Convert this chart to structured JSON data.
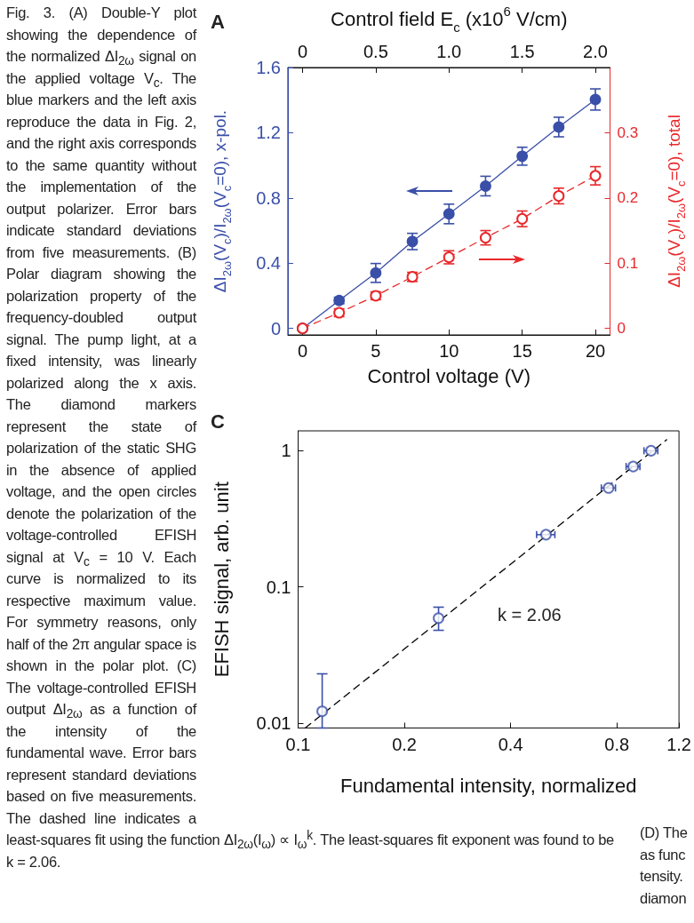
{
  "chart_data": [
    {
      "type": "line",
      "title": "A",
      "xlabel": "Control voltage (V)",
      "x2label": "Control field E$_{c}$ (x10$^{6}$ V/cm)",
      "ylabel": "ΔI$_{2ω}$(V$_{c}$)/I$_{2ω}$(V$_{c}$=0), x-pol.",
      "y2label": "ΔI$_{2ω}$(V$_{c}$)/I$_{2ω}$(V$_{c}$=0), total",
      "x": [
        0,
        2.5,
        5,
        7.5,
        10,
        12.5,
        15,
        17.5,
        20
      ],
      "xlim": [
        -1,
        21
      ],
      "xticks": [
        0,
        5,
        10,
        15,
        20
      ],
      "x2lim": [
        -0.1,
        2.1
      ],
      "x2ticks": [
        0,
        0.5,
        {
          "value": 1,
          "label": "1.0"
        },
        1.5,
        {
          "value": 2,
          "label": "2.0"
        }
      ],
      "ylim": [
        -0.04,
        1.6
      ],
      "yticks": [
        0,
        0.4,
        0.8,
        1.2,
        1.6
      ],
      "y2lim": [
        -0.01,
        0.4
      ],
      "y2ticks": [
        0,
        0.1,
        0.2,
        0.3
      ],
      "series": [
        {
          "color": "#3a4fa8",
          "marker": "circle",
          "line_style": "solid",
          "values": [
            0,
            0.171,
            0.34,
            0.533,
            0.702,
            0.873,
            1.056,
            1.235,
            1.404
          ],
          "errors": [
            null,
            0.02,
            0.058,
            0.05,
            0.06,
            0.06,
            0.055,
            0.06,
            0.065
          ]
        },
        {
          "color": "#e8282b",
          "marker": "open_circle",
          "line_style": "dashed",
          "axis": "y2",
          "values": [
            0,
            0.024,
            0.05,
            0.079,
            0.109,
            0.139,
            0.168,
            0.203,
            0.234
          ],
          "errors": [
            null,
            0.006,
            0.006,
            0.007,
            0.01,
            0.011,
            0.012,
            0.012,
            0.014
          ]
        }
      ],
      "annotations": [
        "Fig. 3. (A) Double-Y plot showing the dependence of the normalized ΔI$_{2ω}$ signal on the applied voltage V$_{c}$. The blue markers and the left axis reproduce the data in Fig. 2, and the right axis corresponds to the same quantity without the implementation of the output polarizer. Error bars indicate standard deviations from five measurements. (B) Polar diagram showing the polarization property of the frequency-doubled output signal. The pump light, at a fixed intensity, was linearly polarized along the x axis. The diamond markers represent the state of polarization of the static SHG in the absence of applied voltage, and the open circles denote the polarization of the voltage-controlled EFISH signal at V$_{c}$ = 10 V. Each curve is normalized to its respective maximum value. For symmetry reasons, only half of the 2π angular space is shown in the polar plot. (C) The voltage-controlled EFISH output ΔI$_{2ω}$ as a function of the intensity of the fundamental wave. Error bars represent standard deviations based on five measurements. The dashed line indicates a least-squares fit using the function ΔI$_{2ω}$(I$_{ω}$) ∝ I$_{ω}$$^{k}$. The least-squares fit exponent was found to be k = 2.06."
      ]
    },
    {
      "type": "scatter",
      "title": "C",
      "log": "xy",
      "xlabel": "Fundamental intensity, normalized",
      "ylabel": "EFISH signal, arb. unit",
      "xlim": [
        0.1,
        1.2
      ],
      "xticks": [
        0.1,
        0.2,
        0.4,
        0.8,
        1.2
      ],
      "ylim": [
        0.0092,
        1.4
      ],
      "yticks": [
        0.01,
        0.1,
        1
      ],
      "series": [
        {
          "color": "#3a4fa8",
          "marker": "open_circle",
          "x": [
            0.117,
            0.25,
            0.504,
            0.758,
            0.89,
            1.0
          ],
          "values": [
            0.0122,
            0.059,
            0.242,
            0.533,
            0.766,
            1.0
          ],
          "errors": [
            [
              0.0092,
              0.023
            ],
            [
              0.048,
              0.071
            ],
            null,
            null,
            null,
            null
          ],
          "xerrors": [
            null,
            null,
            0.03,
            0.035,
            0.04,
            0.045
          ]
        },
        {
          "type": "line",
          "color": "#000000",
          "marker": "none",
          "line_style": "dashed",
          "x": [
            0.1047,
            1.107
          ],
          "values": [
            0.0092,
            1.205
          ]
        }
      ],
      "annotations": [
        "k = 2.06",
        "(D) The\nas func\ntensity.\ndiamon"
      ]
    }
  ]
}
